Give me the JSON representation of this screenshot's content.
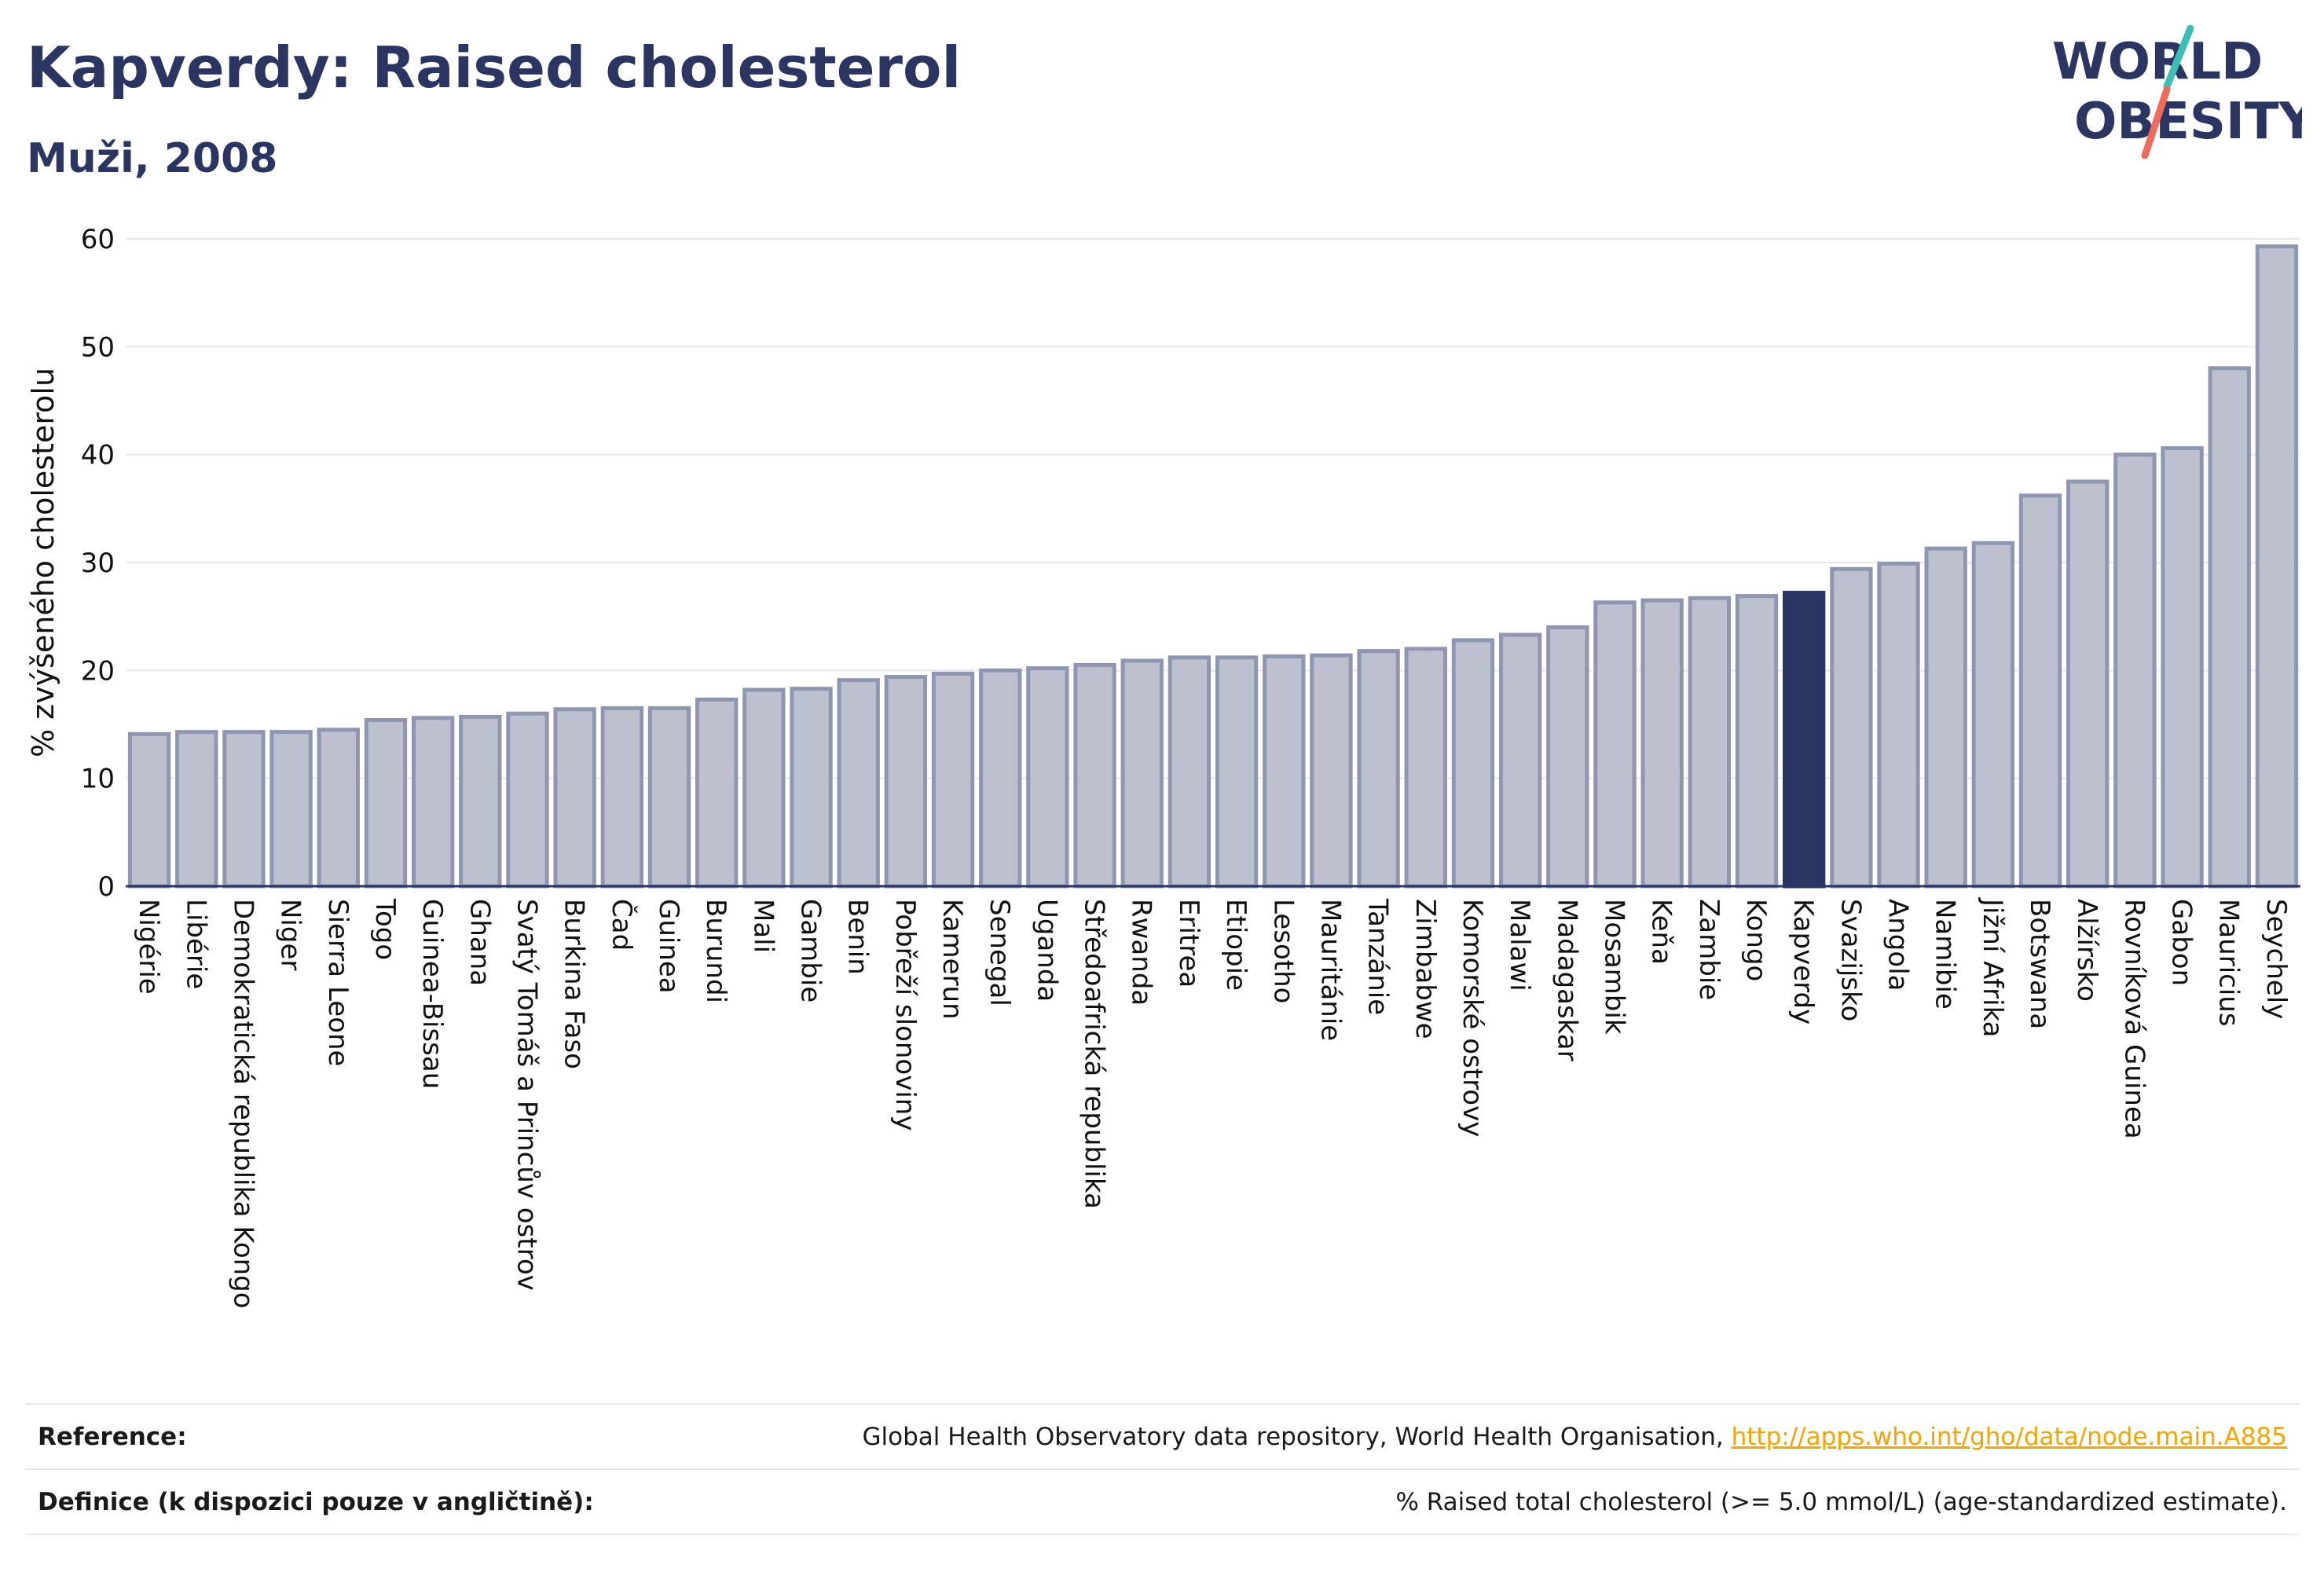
{
  "header": {
    "title": "Kapverdy: Raised cholesterol",
    "subtitle": "Muži, 2008"
  },
  "logo": {
    "line1": "WORLD",
    "line2": "OBESITY"
  },
  "colors": {
    "bar_fill": "#bcc0cf",
    "bar_stroke": "#8f96b0",
    "highlight": "#2b3562",
    "grid": "#e6e8ee",
    "title": "#2b3562",
    "link": "#f0a500",
    "logo_teal": "#3bbfb4",
    "logo_coral": "#ef6b5b"
  },
  "chart_data": {
    "type": "bar",
    "title": "Kapverdy: Raised cholesterol",
    "subtitle": "Muži, 2008",
    "xlabel": "",
    "ylabel": "% zvýšeného cholesterolu",
    "ylim": [
      0,
      60
    ],
    "yticks": [
      0,
      10,
      20,
      30,
      40,
      50,
      60
    ],
    "grid": true,
    "highlight_category": "Kapverdy",
    "categories": [
      "Nigérie",
      "Libérie",
      "Demokratická republika Kongo",
      "Niger",
      "Sierra Leone",
      "Togo",
      "Guinea-Bissau",
      "Ghana",
      "Svatý Tomáš a Princův ostrov",
      "Burkina Faso",
      "Čad",
      "Guinea",
      "Burundi",
      "Mali",
      "Gambie",
      "Benin",
      "Pobřeží slonoviny",
      "Kamerun",
      "Senegal",
      "Uganda",
      "Středoafrická republika",
      "Rwanda",
      "Eritrea",
      "Etiopie",
      "Lesotho",
      "Mauritánie",
      "Tanzánie",
      "Zimbabwe",
      "Komorské ostrovy",
      "Malawi",
      "Madagaskar",
      "Mosambik",
      "Keňa",
      "Zambie",
      "Kongo",
      "Kapverdy",
      "Svazijsko",
      "Angola",
      "Namibie",
      "Jižní Afrika",
      "Botswana",
      "Alžírsko",
      "Rovníková Guinea",
      "Gabon",
      "Mauricius",
      "Seychely"
    ],
    "values": [
      14.1,
      14.3,
      14.3,
      14.3,
      14.5,
      15.4,
      15.6,
      15.7,
      16.0,
      16.4,
      16.5,
      16.5,
      17.3,
      18.2,
      18.3,
      19.1,
      19.4,
      19.7,
      20.0,
      20.2,
      20.5,
      20.9,
      21.2,
      21.2,
      21.3,
      21.4,
      21.8,
      22.0,
      22.8,
      23.3,
      24.0,
      26.3,
      26.5,
      26.7,
      26.9,
      27.2,
      29.4,
      29.9,
      31.3,
      31.8,
      36.2,
      37.5,
      40.0,
      40.6,
      48.0,
      59.3
    ]
  },
  "footer": {
    "reference_label": "Reference:",
    "reference_text": "Global Health Observatory data repository, World Health Organisation, ",
    "reference_link": "http://apps.who.int/gho/data/node.main.A885",
    "definition_label": "Definice (k dispozici pouze v angličtině):",
    "definition_text": "% Raised total cholesterol (>= 5.0 mmol/L) (age-standardized estimate)."
  }
}
